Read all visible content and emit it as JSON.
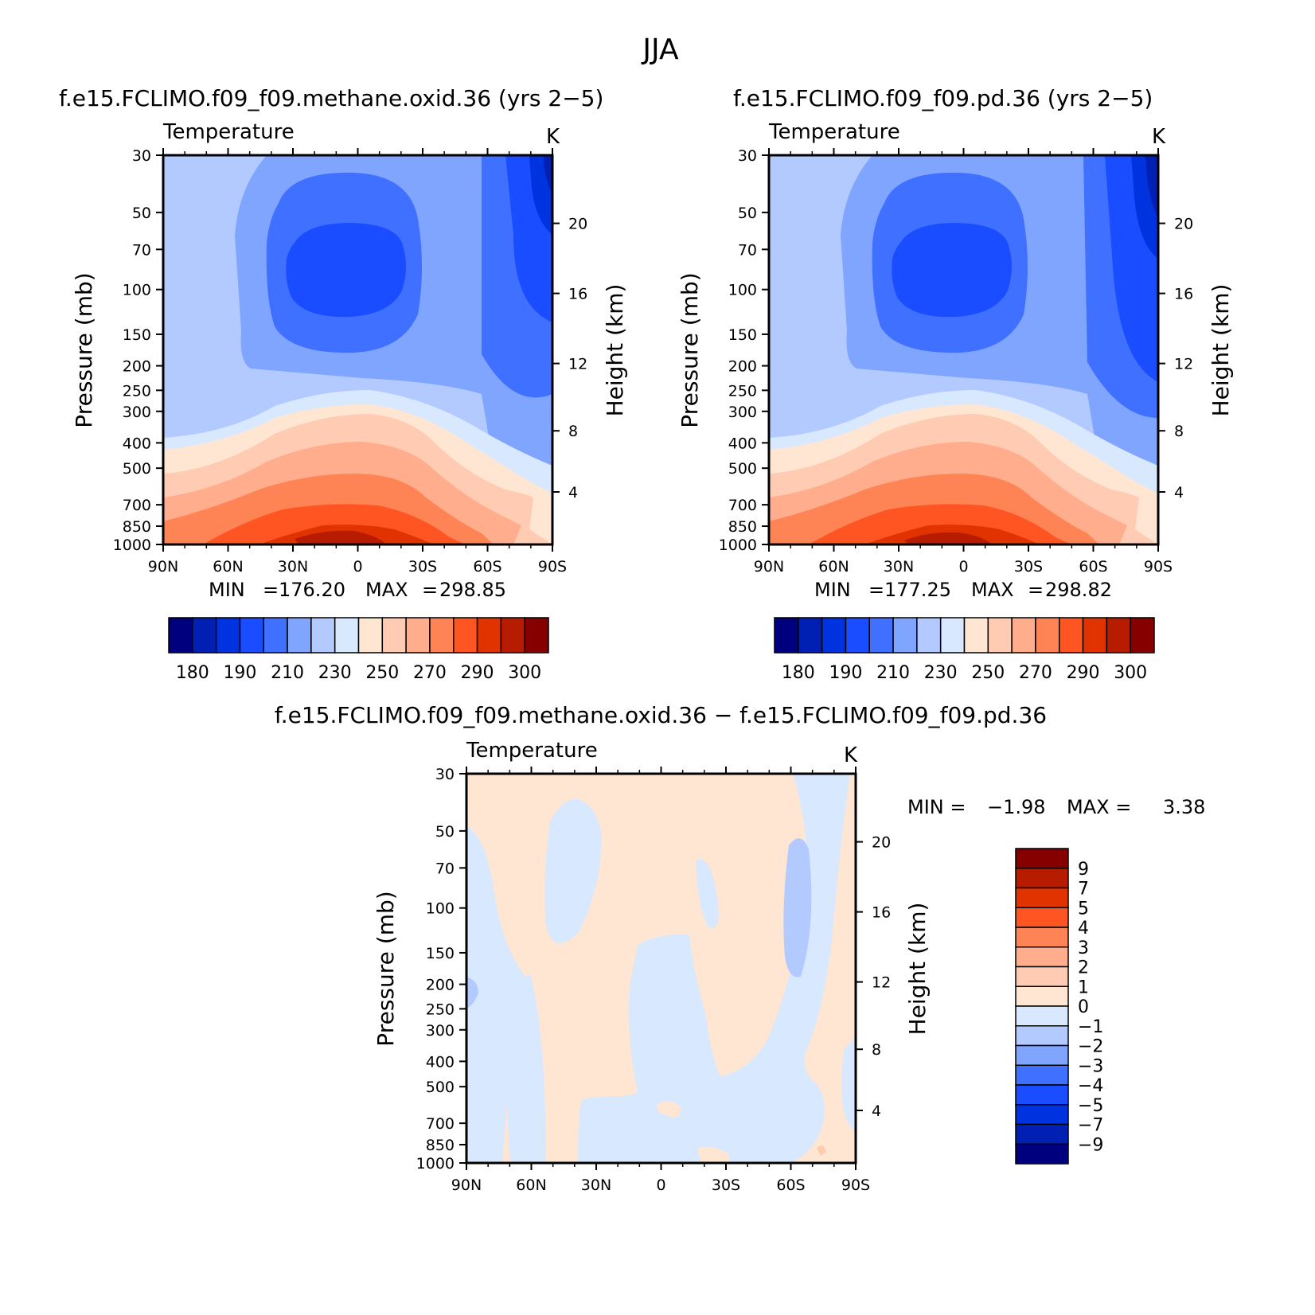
{
  "page_title": "JJA",
  "chart_data": [
    {
      "type": "heatmap",
      "id": "p1",
      "title": "f.e15.FCLIMO.f09_f09.methane.oxid.36 (yrs 2−5)",
      "subtitle_left": "Temperature",
      "subtitle_right": "K",
      "ylabel": "Pressure (mb)",
      "ylabel_right": "Height (km)",
      "x_ticks": [
        "90N",
        "60N",
        "30N",
        "0",
        "30S",
        "60S",
        "90S"
      ],
      "y_ticks": [
        "30",
        "50",
        "70",
        "100",
        "150",
        "200",
        "250",
        "300",
        "400",
        "500",
        "700",
        "850",
        "1000"
      ],
      "height_ticks": [
        "20",
        "16",
        "12",
        "8",
        "4"
      ],
      "min_label": "MIN",
      "min_value": "176.20",
      "max_label": "MAX",
      "max_value": "298.85",
      "colorbar_labels": [
        "180",
        "190",
        "210",
        "230",
        "250",
        "270",
        "290",
        "300"
      ]
    },
    {
      "type": "heatmap",
      "id": "p2",
      "title": "f.e15.FCLIMO.f09_f09.pd.36 (yrs 2−5)",
      "subtitle_left": "Temperature",
      "subtitle_right": "K",
      "ylabel": "Pressure (mb)",
      "ylabel_right": "Height (km)",
      "x_ticks": [
        "90N",
        "60N",
        "30N",
        "0",
        "30S",
        "60S",
        "90S"
      ],
      "y_ticks": [
        "30",
        "50",
        "70",
        "100",
        "150",
        "200",
        "250",
        "300",
        "400",
        "500",
        "700",
        "850",
        "1000"
      ],
      "height_ticks": [
        "20",
        "16",
        "12",
        "8",
        "4"
      ],
      "min_label": "MIN",
      "min_value": "177.25",
      "max_label": "MAX",
      "max_value": "298.82",
      "colorbar_labels": [
        "180",
        "190",
        "210",
        "230",
        "250",
        "270",
        "290",
        "300"
      ]
    },
    {
      "type": "heatmap",
      "id": "p3",
      "title": "f.e15.FCLIMO.f09_f09.methane.oxid.36 − f.e15.FCLIMO.f09_f09.pd.36",
      "subtitle_left": "Temperature",
      "subtitle_right": "K",
      "ylabel": "Pressure (mb)",
      "ylabel_right": "Height (km)",
      "x_ticks": [
        "90N",
        "60N",
        "30N",
        "0",
        "30S",
        "60S",
        "90S"
      ],
      "y_ticks": [
        "30",
        "50",
        "70",
        "100",
        "150",
        "200",
        "250",
        "300",
        "400",
        "500",
        "700",
        "850",
        "1000"
      ],
      "height_ticks": [
        "20",
        "16",
        "12",
        "8",
        "4"
      ],
      "min_label": "MIN =",
      "min_value": "−1.98",
      "max_label": "MAX =",
      "max_value": "3.38",
      "colorbar_labels": [
        "9",
        "7",
        "5",
        "4",
        "3",
        "2",
        "1",
        "0",
        "−1",
        "−2",
        "−3",
        "−4",
        "−5",
        "−7",
        "−9"
      ]
    }
  ],
  "colors": {
    "temperature_scale": [
      "#00007f",
      "#0020b3",
      "#0033e0",
      "#1a4dff",
      "#4070ff",
      "#7fa5ff",
      "#b2caff",
      "#d8e8ff",
      "#ffe6d2",
      "#ffcbb2",
      "#ffad8c",
      "#ff8455",
      "#ff5522",
      "#e03300",
      "#b81c00",
      "#860000"
    ],
    "difference_scale": [
      "#860000",
      "#b81c00",
      "#e03300",
      "#ff5522",
      "#ff8455",
      "#ffad8c",
      "#ffcbb2",
      "#ffe6d2",
      "#d8e8ff",
      "#b2caff",
      "#7fa5ff",
      "#4070ff",
      "#1a4dff",
      "#0033e0",
      "#0020b3",
      "#00007f"
    ]
  }
}
